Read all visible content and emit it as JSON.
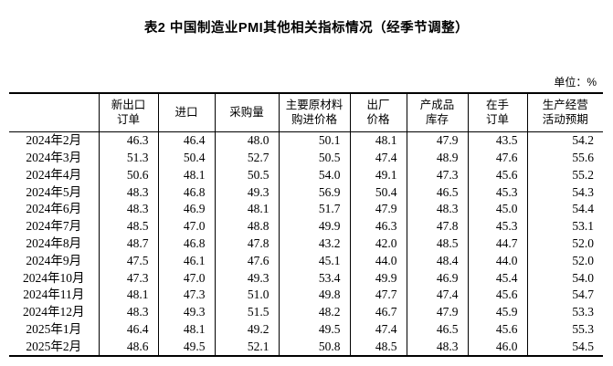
{
  "title": "表2 中国制造业PMI其他相关指标情况（经季节调整）",
  "unit_label": "单位：%",
  "table": {
    "columns": [
      "新出口\n订单",
      "进口",
      "采购量",
      "主要原材料\n购进价格",
      "出厂\n价格",
      "产成品\n库存",
      "在手\n订单",
      "生产经营\n活动预期"
    ],
    "rows": [
      {
        "date": "2024年2月",
        "values": [
          "46.3",
          "46.4",
          "48.0",
          "50.1",
          "48.1",
          "47.9",
          "43.5",
          "54.2"
        ]
      },
      {
        "date": "2024年3月",
        "values": [
          "51.3",
          "50.4",
          "52.7",
          "50.5",
          "47.4",
          "48.9",
          "47.6",
          "55.6"
        ]
      },
      {
        "date": "2024年4月",
        "values": [
          "50.6",
          "48.1",
          "50.5",
          "54.0",
          "49.1",
          "47.3",
          "45.6",
          "55.2"
        ]
      },
      {
        "date": "2024年5月",
        "values": [
          "48.3",
          "46.8",
          "49.3",
          "56.9",
          "50.4",
          "46.5",
          "45.3",
          "54.3"
        ]
      },
      {
        "date": "2024年6月",
        "values": [
          "48.3",
          "46.9",
          "48.1",
          "51.7",
          "47.9",
          "48.3",
          "45.0",
          "54.4"
        ]
      },
      {
        "date": "2024年7月",
        "values": [
          "48.5",
          "47.0",
          "48.8",
          "49.9",
          "46.3",
          "47.8",
          "45.3",
          "53.1"
        ]
      },
      {
        "date": "2024年8月",
        "values": [
          "48.7",
          "46.8",
          "47.8",
          "43.2",
          "42.0",
          "48.5",
          "44.7",
          "52.0"
        ]
      },
      {
        "date": "2024年9月",
        "values": [
          "47.5",
          "46.1",
          "47.6",
          "45.1",
          "44.0",
          "48.4",
          "44.0",
          "52.0"
        ]
      },
      {
        "date": "2024年10月",
        "values": [
          "47.3",
          "47.0",
          "49.3",
          "53.4",
          "49.9",
          "46.9",
          "45.4",
          "54.0"
        ]
      },
      {
        "date": "2024年11月",
        "values": [
          "48.1",
          "47.3",
          "51.0",
          "49.8",
          "47.7",
          "47.4",
          "45.6",
          "54.7"
        ]
      },
      {
        "date": "2024年12月",
        "values": [
          "48.3",
          "49.3",
          "51.5",
          "48.2",
          "46.7",
          "47.9",
          "45.9",
          "53.3"
        ]
      },
      {
        "date": "2025年1月",
        "values": [
          "46.4",
          "48.1",
          "49.2",
          "49.5",
          "47.4",
          "46.5",
          "45.6",
          "55.3"
        ]
      },
      {
        "date": "2025年2月",
        "values": [
          "48.6",
          "49.5",
          "52.1",
          "50.8",
          "48.5",
          "48.3",
          "46.0",
          "54.5"
        ]
      }
    ]
  }
}
